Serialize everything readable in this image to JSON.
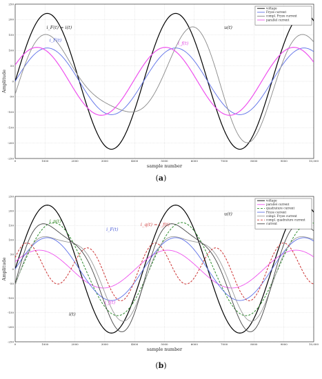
{
  "figure": {
    "panels": [
      {
        "caption_open": "(",
        "caption_letter": "a",
        "caption_close": ")",
        "annotations": [
          {
            "text": "i_F(t) = i(t)",
            "color": "#222222",
            "x": 1050,
            "y": 170
          },
          {
            "text": "i_F(t)",
            "color": "#4a5cd6",
            "x": 1150,
            "y": 128
          },
          {
            "text": "u(t)",
            "color": "#222222",
            "x": 7000,
            "y": 170
          },
          {
            "text": "i_f(t)",
            "color": "#e040e0",
            "x": 5450,
            "y": 118
          }
        ]
      },
      {
        "caption_open": "(",
        "caption_letter": "b",
        "caption_close": ")",
        "annotations": [
          {
            "text": "i_p(t)",
            "color": "#3a8a2a",
            "x": 1150,
            "y": 160
          },
          {
            "text": "u(t)",
            "color": "#222222",
            "x": 7000,
            "y": 185
          },
          {
            "text": "i_F(t)",
            "color": "#4a5cd6",
            "x": 3050,
            "y": 132
          },
          {
            "text": "i_q(t) = i_f(t)",
            "color": "#d04040",
            "x": 4200,
            "y": 148
          },
          {
            "text": "i_f(t)",
            "color": "#e040e0",
            "x": 3000,
            "y": -120
          },
          {
            "text": "i(t)",
            "color": "#222222",
            "x": 1800,
            "y": -160
          }
        ]
      }
    ]
  },
  "chart_data": [
    {
      "type": "line",
      "title": "",
      "xlabel": "sample number",
      "ylabel": "Amplitude",
      "xlim": [
        0,
        10000
      ],
      "ylim": [
        -250,
        250
      ],
      "xticks": [
        0,
        1000,
        2000,
        3000,
        4000,
        5000,
        6000,
        7000,
        8000,
        9000,
        10000
      ],
      "xtick_labels": [
        "0",
        "1000",
        "2000",
        "3000",
        "4000",
        "5000",
        "6000",
        "7000",
        "8000",
        "9000",
        "10,000"
      ],
      "yticks": [
        -250,
        -200,
        -150,
        -100,
        -50,
        0,
        50,
        100,
        150,
        200,
        250
      ],
      "grid": true,
      "legend_position": "top-right",
      "series": [
        {
          "name": "voltage",
          "color": "#000000",
          "dash": "",
          "width": 1.2,
          "components": [
            {
              "a": 220,
              "f": 1,
              "p": 0
            }
          ],
          "envelope": [
            {
              "t": 0,
              "a": 1
            },
            {
              "t": 0.35,
              "a": 1
            },
            {
              "t": 0.38,
              "a": 0.95
            },
            {
              "t": 0.6,
              "a": 1
            }
          ]
        },
        {
          "name": "Fryze current",
          "color": "#5b6ee8",
          "dash": "",
          "width": 0.9,
          "components": [
            {
              "a": 108,
              "f": 1,
              "p": 0
            }
          ]
        },
        {
          "name": "compl. Fryze current",
          "color": "#888888",
          "dash": "",
          "width": 0.9,
          "components": [
            {
              "a": 145,
              "f": 1,
              "p": -0.45
            },
            {
              "a": 55,
              "f": 1.5,
              "p": 0.4
            }
          ]
        },
        {
          "name": "parallel current",
          "color": "#ee50ee",
          "dash": "",
          "width": 1.2,
          "components": [
            {
              "a": 110,
              "f": 1,
              "p": 0.5
            }
          ]
        }
      ]
    },
    {
      "type": "line",
      "title": "",
      "xlabel": "sample number",
      "ylabel": "Amplitude",
      "xlim": [
        0,
        10000
      ],
      "ylim": [
        -250,
        250
      ],
      "xticks": [
        0,
        1000,
        2000,
        3000,
        4000,
        5000,
        6000,
        7000,
        8000,
        9000,
        10000
      ],
      "xtick_labels": [
        "0",
        "1000",
        "2000",
        "3000",
        "4000",
        "5000",
        "6000",
        "7000",
        "8000",
        "9000",
        "10,000"
      ],
      "yticks": [
        -250,
        -200,
        -150,
        -100,
        -50,
        0,
        50,
        100,
        150,
        200,
        250
      ],
      "grid": true,
      "legend_position": "top-right",
      "series": [
        {
          "name": "voltage",
          "color": "#000000",
          "dash": "",
          "width": 1.2,
          "components": [
            {
              "a": 220,
              "f": 1,
              "p": 0
            }
          ]
        },
        {
          "name": "parallel current",
          "color": "#ee50ee",
          "dash": "",
          "width": 0.9,
          "components": [
            {
              "a": 65,
              "f": 1,
              "p": 0.4
            }
          ]
        },
        {
          "name": "quadrature current",
          "color": "#2a8a2a",
          "dash": "3,2",
          "width": 1.0,
          "components": [
            {
              "a": 160,
              "f": 1,
              "p": -0.3
            }
          ]
        },
        {
          "name": "Fryze current",
          "color": "#5b6ee8",
          "dash": "",
          "width": 0.9,
          "components": [
            {
              "a": 108,
              "f": 1,
              "p": 0
            }
          ]
        },
        {
          "name": "compl. Fryze current",
          "color": "#999999",
          "dash": "",
          "width": 0.9,
          "components": [
            {
              "a": 140,
              "f": 1,
              "p": -0.5
            },
            {
              "a": 40,
              "f": 2,
              "p": 0.3
            }
          ]
        },
        {
          "name": "compl. quadrature current",
          "color": "#cc3333",
          "dash": "3,2",
          "width": 1.0,
          "components": [
            {
              "a": 80,
              "f": 2,
              "p": 0.6
            },
            {
              "a": 30,
              "f": 1,
              "p": -0.2
            }
          ]
        },
        {
          "name": "current",
          "color": "#444444",
          "dash": "",
          "width": 0.9,
          "components": [
            {
              "a": 175,
              "f": 1,
              "p": -0.35
            },
            {
              "a": 45,
              "f": 2,
              "p": 0.25
            }
          ]
        }
      ]
    }
  ]
}
